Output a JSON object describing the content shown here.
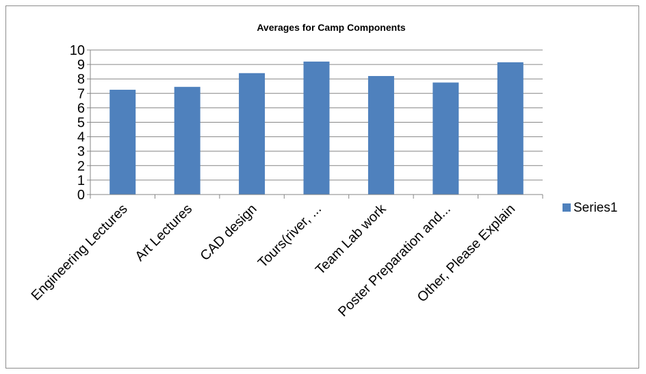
{
  "chart_data": {
    "type": "bar",
    "title": "Averages for Camp Components",
    "xlabel": "",
    "ylabel": "",
    "categories": [
      "Engineering Lectures",
      "Art Lectures",
      "CAD design",
      "Tours(river, ...",
      "Team Lab work",
      "Poster Preparation and...",
      "Other, Please Explain"
    ],
    "series": [
      {
        "name": "Series1",
        "values": [
          7.25,
          7.45,
          8.4,
          9.2,
          8.2,
          7.75,
          9.15
        ]
      }
    ],
    "ylim": [
      0,
      10
    ],
    "yticks": [
      0,
      1,
      2,
      3,
      4,
      5,
      6,
      7,
      8,
      9,
      10
    ],
    "grid": true,
    "legend_position": "right",
    "colors": {
      "bar": "#4F81BD",
      "grid": "#868686",
      "axis": "#868686"
    }
  }
}
